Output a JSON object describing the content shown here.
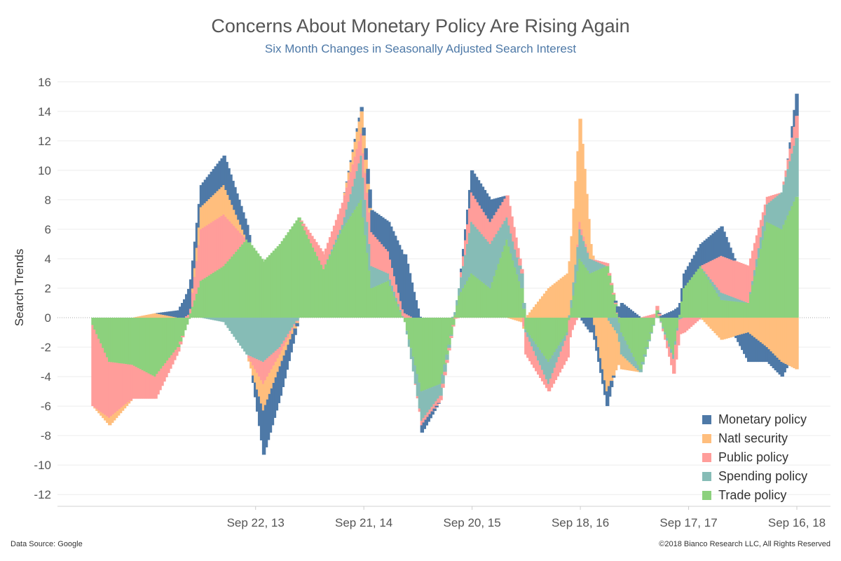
{
  "chart_data": {
    "type": "bar",
    "stacked": true,
    "title": "Concerns About Monetary Policy Are Rising Again",
    "subtitle": "Six Month Changes in Seasonally Adjusted Search Interest",
    "ylabel": "Search Trends",
    "xlabel": "",
    "ylim": [
      -12.8,
      16.8
    ],
    "yticks": [
      16,
      14,
      12,
      10,
      8,
      6,
      4,
      2,
      0,
      -2,
      -4,
      -6,
      -8,
      -10,
      -12
    ],
    "x_start": "2012-03-25",
    "x_end": "2018-09-16",
    "xticks": [
      {
        "date": "2013-09-22",
        "label": "Sep 22, 13"
      },
      {
        "date": "2014-09-21",
        "label": "Sep 21, 14"
      },
      {
        "date": "2015-09-20",
        "label": "Sep 20, 15"
      },
      {
        "date": "2016-09-18",
        "label": "Sep 18, 16"
      },
      {
        "date": "2017-09-17",
        "label": "Sep 17, 17"
      },
      {
        "date": "2018-09-16",
        "label": "Sep 16, 18"
      }
    ],
    "grid": true,
    "legend_position": "bottom-right",
    "series_names": [
      "Monetary policy",
      "Natl security",
      "Public policy",
      "Spending policy",
      "Trade policy"
    ],
    "stack_order_bottom_to_top": [
      "Trade policy",
      "Spending policy",
      "Public policy",
      "Natl security",
      "Monetary policy"
    ],
    "colors": {
      "Monetary policy": "#4e79a7",
      "Natl security": "#ffbe7d",
      "Public policy": "#ff9d9a",
      "Spending policy": "#86bcb6",
      "Trade policy": "#8cd17d"
    },
    "series_keyframes": [
      {
        "name": "Trade policy",
        "points": [
          [
            "2012-03-25",
            -0.5
          ],
          [
            "2012-05-20",
            -3
          ],
          [
            "2012-08-05",
            -3.2
          ],
          [
            "2012-10-21",
            -4
          ],
          [
            "2013-01-06",
            -2
          ],
          [
            "2013-02-17",
            0.3
          ],
          [
            "2013-03-24",
            2.5
          ],
          [
            "2013-06-09",
            3.5
          ],
          [
            "2013-08-25",
            5.3
          ],
          [
            "2013-10-20",
            3.8
          ],
          [
            "2013-12-15",
            5
          ],
          [
            "2014-02-16",
            6.8
          ],
          [
            "2014-05-11",
            3.3
          ],
          [
            "2014-07-13",
            6
          ],
          [
            "2014-09-14",
            8
          ],
          [
            "2014-10-19",
            2
          ],
          [
            "2014-12-14",
            2.5
          ],
          [
            "2015-02-08",
            -0.3
          ],
          [
            "2015-04-05",
            -5
          ],
          [
            "2015-06-07",
            -4.5
          ],
          [
            "2015-08-09",
            1.5
          ],
          [
            "2015-09-20",
            3
          ],
          [
            "2015-11-22",
            2
          ],
          [
            "2016-01-17",
            5.3
          ],
          [
            "2016-03-06",
            2
          ],
          [
            "2016-03-20",
            -0.8
          ],
          [
            "2016-06-05",
            -3
          ],
          [
            "2016-08-07",
            -1
          ],
          [
            "2016-09-18",
            4
          ],
          [
            "2016-10-23",
            3
          ],
          [
            "2016-12-18",
            3.5
          ],
          [
            "2017-02-05",
            -1
          ],
          [
            "2017-04-09",
            -3.5
          ],
          [
            "2017-06-04",
            0.5
          ],
          [
            "2017-07-30",
            -2.5
          ],
          [
            "2017-09-03",
            2
          ],
          [
            "2017-10-29",
            3.5
          ],
          [
            "2018-01-07",
            1.2
          ],
          [
            "2018-04-08",
            1
          ],
          [
            "2018-06-10",
            6.5
          ],
          [
            "2018-07-29",
            6
          ],
          [
            "2018-09-16",
            8.2
          ]
        ]
      },
      {
        "name": "Spending policy",
        "points": [
          [
            "2012-03-25",
            0
          ],
          [
            "2012-05-20",
            0
          ],
          [
            "2012-08-05",
            0
          ],
          [
            "2012-10-21",
            0
          ],
          [
            "2013-01-06",
            0
          ],
          [
            "2013-02-17",
            0
          ],
          [
            "2013-03-24",
            0
          ],
          [
            "2013-06-09",
            -0.3
          ],
          [
            "2013-08-25",
            -2.5
          ],
          [
            "2013-10-20",
            -3
          ],
          [
            "2013-12-15",
            -2
          ],
          [
            "2014-02-16",
            0
          ],
          [
            "2014-05-11",
            0
          ],
          [
            "2014-07-13",
            0.3
          ],
          [
            "2014-09-14",
            3
          ],
          [
            "2014-10-19",
            1.5
          ],
          [
            "2014-12-14",
            0.5
          ],
          [
            "2015-02-08",
            0
          ],
          [
            "2015-04-05",
            -2
          ],
          [
            "2015-06-07",
            -0.8
          ],
          [
            "2015-08-09",
            0.5
          ],
          [
            "2015-09-20",
            3.5
          ],
          [
            "2015-11-22",
            3
          ],
          [
            "2016-01-17",
            1.5
          ],
          [
            "2016-03-06",
            1
          ],
          [
            "2016-03-20",
            -0.2
          ],
          [
            "2016-06-05",
            -1.5
          ],
          [
            "2016-08-07",
            -0.2
          ],
          [
            "2016-09-18",
            2
          ],
          [
            "2016-10-23",
            1
          ],
          [
            "2016-12-18",
            0
          ],
          [
            "2017-02-05",
            -1.5
          ],
          [
            "2017-04-09",
            -0.2
          ],
          [
            "2017-06-04",
            0
          ],
          [
            "2017-07-30",
            -0.3
          ],
          [
            "2017-09-03",
            0
          ],
          [
            "2017-10-29",
            0
          ],
          [
            "2018-01-07",
            0.5
          ],
          [
            "2018-04-08",
            0
          ],
          [
            "2018-06-10",
            1.2
          ],
          [
            "2018-07-29",
            2.5
          ],
          [
            "2018-09-16",
            4
          ]
        ]
      },
      {
        "name": "Public policy",
        "points": [
          [
            "2012-03-25",
            -5.5
          ],
          [
            "2012-05-20",
            -3.8
          ],
          [
            "2012-08-05",
            -2.3
          ],
          [
            "2012-10-21",
            -1.5
          ],
          [
            "2013-01-06",
            -0.3
          ],
          [
            "2013-02-17",
            0.3
          ],
          [
            "2013-03-24",
            3.5
          ],
          [
            "2013-06-09",
            3.5
          ],
          [
            "2013-08-25",
            0
          ],
          [
            "2013-10-20",
            -1.5
          ],
          [
            "2013-12-15",
            -0.5
          ],
          [
            "2014-02-16",
            0
          ],
          [
            "2014-05-11",
            1
          ],
          [
            "2014-07-13",
            1.5
          ],
          [
            "2014-09-14",
            1.5
          ],
          [
            "2014-10-19",
            2.3
          ],
          [
            "2014-12-14",
            1.5
          ],
          [
            "2015-02-08",
            0.3
          ],
          [
            "2015-04-05",
            -0.3
          ],
          [
            "2015-06-07",
            -0.3
          ],
          [
            "2015-08-09",
            0
          ],
          [
            "2015-09-20",
            2
          ],
          [
            "2015-11-22",
            1.5
          ],
          [
            "2016-01-17",
            1.5
          ],
          [
            "2016-03-06",
            0.3
          ],
          [
            "2016-03-20",
            -1.5
          ],
          [
            "2016-06-05",
            -0.5
          ],
          [
            "2016-08-07",
            -1.5
          ],
          [
            "2016-09-18",
            0.5
          ],
          [
            "2016-10-23",
            0
          ],
          [
            "2016-12-18",
            0.2
          ],
          [
            "2017-02-05",
            0
          ],
          [
            "2017-04-09",
            0
          ],
          [
            "2017-06-04",
            0.3
          ],
          [
            "2017-07-30",
            -1
          ],
          [
            "2017-09-03",
            -1
          ],
          [
            "2017-10-29",
            0
          ],
          [
            "2018-01-07",
            2.5
          ],
          [
            "2018-04-08",
            2.5
          ],
          [
            "2018-06-10",
            0.5
          ],
          [
            "2018-07-29",
            0
          ],
          [
            "2018-09-16",
            1.5
          ]
        ]
      },
      {
        "name": "Natl security",
        "points": [
          [
            "2012-03-25",
            0
          ],
          [
            "2012-05-20",
            -0.5
          ],
          [
            "2012-08-05",
            0
          ],
          [
            "2012-10-21",
            0.3
          ],
          [
            "2013-01-06",
            0
          ],
          [
            "2013-02-17",
            0
          ],
          [
            "2013-03-24",
            1.5
          ],
          [
            "2013-06-09",
            2
          ],
          [
            "2013-08-25",
            0
          ],
          [
            "2013-10-20",
            -1.8
          ],
          [
            "2013-12-15",
            -0.8
          ],
          [
            "2014-02-16",
            0
          ],
          [
            "2014-05-11",
            0
          ],
          [
            "2014-07-13",
            0
          ],
          [
            "2014-09-14",
            1.5
          ],
          [
            "2014-10-19",
            0
          ],
          [
            "2014-12-14",
            0
          ],
          [
            "2015-02-08",
            0
          ],
          [
            "2015-04-05",
            0
          ],
          [
            "2015-06-07",
            0
          ],
          [
            "2015-08-09",
            0
          ],
          [
            "2015-09-20",
            0
          ],
          [
            "2015-11-22",
            0
          ],
          [
            "2016-01-17",
            0
          ],
          [
            "2016-03-06",
            -0.3
          ],
          [
            "2016-03-20",
            0
          ],
          [
            "2016-06-05",
            2
          ],
          [
            "2016-08-07",
            3
          ],
          [
            "2016-09-18",
            7
          ],
          [
            "2016-10-23",
            1
          ],
          [
            "2016-12-18",
            -5
          ],
          [
            "2017-02-05",
            -1
          ],
          [
            "2017-04-09",
            0
          ],
          [
            "2017-06-04",
            0
          ],
          [
            "2017-07-30",
            0
          ],
          [
            "2017-09-03",
            0
          ],
          [
            "2017-10-29",
            0
          ],
          [
            "2018-01-07",
            -1.5
          ],
          [
            "2018-04-08",
            -1
          ],
          [
            "2018-06-10",
            -2
          ],
          [
            "2018-07-29",
            -3
          ],
          [
            "2018-09-16",
            -3.5
          ]
        ]
      },
      {
        "name": "Monetary policy",
        "points": [
          [
            "2012-03-25",
            0
          ],
          [
            "2012-05-20",
            0
          ],
          [
            "2012-08-05",
            0
          ],
          [
            "2012-10-21",
            0
          ],
          [
            "2013-01-06",
            0.5
          ],
          [
            "2013-02-17",
            2
          ],
          [
            "2013-03-24",
            1.5
          ],
          [
            "2013-06-09",
            2
          ],
          [
            "2013-08-25",
            1
          ],
          [
            "2013-10-20",
            -3
          ],
          [
            "2013-12-15",
            -2
          ],
          [
            "2014-02-16",
            0
          ],
          [
            "2014-05-11",
            0
          ],
          [
            "2014-07-13",
            0
          ],
          [
            "2014-09-14",
            0.3
          ],
          [
            "2014-10-19",
            1.5
          ],
          [
            "2014-12-14",
            2
          ],
          [
            "2015-02-08",
            4
          ],
          [
            "2015-04-05",
            -0.5
          ],
          [
            "2015-06-07",
            0
          ],
          [
            "2015-08-09",
            0
          ],
          [
            "2015-09-20",
            1.5
          ],
          [
            "2015-11-22",
            1.5
          ],
          [
            "2016-01-17",
            0
          ],
          [
            "2016-03-06",
            0
          ],
          [
            "2016-03-20",
            0
          ],
          [
            "2016-06-05",
            0
          ],
          [
            "2016-08-07",
            0
          ],
          [
            "2016-09-18",
            0
          ],
          [
            "2016-10-23",
            -1
          ],
          [
            "2016-12-18",
            -1
          ],
          [
            "2017-02-05",
            1
          ],
          [
            "2017-04-09",
            0
          ],
          [
            "2017-06-04",
            0
          ],
          [
            "2017-07-30",
            0.5
          ],
          [
            "2017-09-03",
            1
          ],
          [
            "2017-10-29",
            1.5
          ],
          [
            "2018-01-07",
            2
          ],
          [
            "2018-04-08",
            -2
          ],
          [
            "2018-06-10",
            -1
          ],
          [
            "2018-07-29",
            -1
          ],
          [
            "2018-09-16",
            1.5
          ]
        ]
      }
    ]
  },
  "legend": {
    "items": [
      {
        "label": "Monetary policy",
        "color": "#4e79a7"
      },
      {
        "label": "Natl security",
        "color": "#ffbe7d"
      },
      {
        "label": "Public policy",
        "color": "#ff9d9a"
      },
      {
        "label": "Spending policy",
        "color": "#86bcb6"
      },
      {
        "label": "Trade policy",
        "color": "#8cd17d"
      }
    ]
  },
  "footer": {
    "source": "Data Source: Google",
    "copyright": "©2018 Bianco Research LLC, All Rights Reserved"
  }
}
